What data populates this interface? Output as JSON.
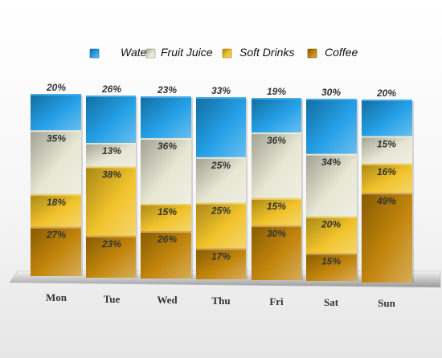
{
  "chart_data": {
    "type": "bar",
    "stacked": true,
    "percent_stacked": true,
    "categories": [
      "Mon",
      "Tue",
      "Wed",
      "Thu",
      "Fri",
      "Sat",
      "Sun"
    ],
    "series": [
      {
        "name": "Water",
        "color": "#1a9be6",
        "values": [
          20,
          26,
          23,
          33,
          19,
          30,
          20
        ]
      },
      {
        "name": "Fruit Juice",
        "color": "#e6e6d2",
        "values": [
          35,
          13,
          36,
          25,
          36,
          34,
          15
        ]
      },
      {
        "name": "Soft Drinks",
        "color": "#f0c020",
        "values": [
          18,
          38,
          15,
          25,
          15,
          20,
          16
        ]
      },
      {
        "name": "Coffee",
        "color": "#c08000",
        "values": [
          27,
          23,
          26,
          17,
          30,
          15,
          49
        ]
      }
    ],
    "value_suffix": "%",
    "legend_position": "top",
    "grid": false,
    "ylim": [
      0,
      100
    ]
  }
}
